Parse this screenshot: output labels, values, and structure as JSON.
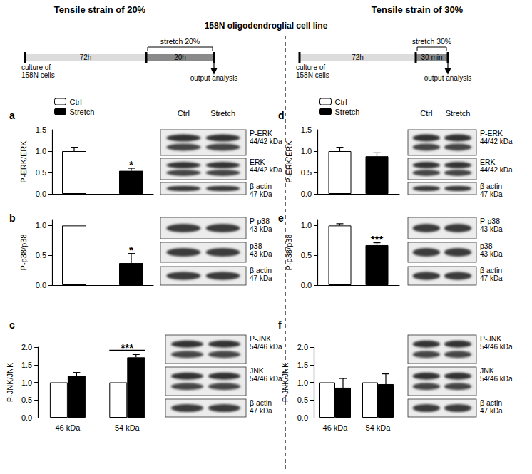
{
  "headers": {
    "left": "Tensile strain of 20%",
    "right": "Tensile strain of 30%",
    "center": "158N oligodendroglial cell line"
  },
  "timelines": [
    {
      "culture": [
        "culture of",
        "158N cells"
      ],
      "culture_time": "72h",
      "stretch": "stretch 20%",
      "stretch_time": "20h",
      "output": "output analysis"
    },
    {
      "culture": [
        "culture of",
        "158N cells"
      ],
      "culture_time": "72h",
      "stretch": "stretch 30%",
      "stretch_time": "30 min",
      "output": "output analysis"
    }
  ],
  "chart_data": [
    {
      "panel": "a",
      "type": "bar",
      "y_label": "P-ERK/ERK",
      "categories": [
        null
      ],
      "series": [
        {
          "name": "Ctrl",
          "color": "#ffffff",
          "values": [
            1.0
          ],
          "errors": [
            0.09
          ]
        },
        {
          "name": "Stretch",
          "color": "#000000",
          "values": [
            0.54
          ],
          "errors": [
            0.06
          ],
          "significance": [
            "*"
          ]
        }
      ],
      "ylim": [
        0,
        1.5
      ],
      "yticks": [
        {
          "value": 0,
          "label": "0.0"
        },
        {
          "value": 0.5,
          "label": "0.5"
        },
        {
          "value": 1,
          "label": "1.0"
        },
        {
          "value": 1.5,
          "label": "1.5"
        }
      ],
      "grid": false,
      "legend": "top left"
    },
    {
      "panel": "b",
      "type": "bar",
      "y_label": "P-p38/p38",
      "categories": [
        null
      ],
      "series": [
        {
          "name": "Ctrl",
          "color": "#ffffff",
          "values": [
            1.0
          ]
        },
        {
          "name": "Stretch",
          "color": "#000000",
          "values": [
            0.37
          ],
          "errors": [
            0.16
          ],
          "significance": [
            "*"
          ]
        }
      ],
      "ylim": [
        0,
        1.1
      ],
      "yticks": [
        {
          "value": 0,
          "label": "0.0"
        },
        {
          "value": 0.5,
          "label": "0.5"
        },
        {
          "value": 1,
          "label": "1.0"
        }
      ],
      "grid": false
    },
    {
      "panel": "c",
      "type": "bar",
      "y_label": "P-JNK/JNK",
      "categories": [
        "46 kDa",
        "54 kDa"
      ],
      "series": [
        {
          "name": "Ctrl",
          "color": "#ffffff",
          "values": [
            1.0,
            1.0
          ]
        },
        {
          "name": "Stretch",
          "color": "#000000",
          "values": [
            1.18,
            1.71
          ],
          "errors": [
            0.1,
            0.08
          ],
          "significance": [
            null,
            "***"
          ]
        }
      ],
      "ylim": [
        0,
        2
      ],
      "yticks": [
        {
          "value": 0,
          "label": "0.0"
        },
        {
          "value": 0.5,
          "label": "0.5"
        },
        {
          "value": 1,
          "label": "1.0"
        },
        {
          "value": 1.5,
          "label": "1.5"
        },
        {
          "value": 2,
          "label": "2.0"
        }
      ],
      "grid": false
    },
    {
      "panel": "d",
      "type": "bar",
      "y_label": "P-ERK/ERK",
      "categories": [
        null
      ],
      "series": [
        {
          "name": "Ctrl",
          "color": "#ffffff",
          "values": [
            1.0
          ],
          "errors": [
            0.09
          ]
        },
        {
          "name": "Stretch",
          "color": "#000000",
          "values": [
            0.88
          ],
          "errors": [
            0.08
          ]
        }
      ],
      "ylim": [
        0,
        1.5
      ],
      "yticks": [
        {
          "value": 0,
          "label": "0.0"
        },
        {
          "value": 0.5,
          "label": "0.5"
        },
        {
          "value": 1,
          "label": "1.0"
        },
        {
          "value": 1.5,
          "label": "1.5"
        }
      ],
      "grid": false,
      "legend": "top left"
    },
    {
      "panel": "e",
      "type": "bar",
      "y_label": "P-p38/p38",
      "categories": [
        null
      ],
      "series": [
        {
          "name": "Ctrl",
          "color": "#ffffff",
          "values": [
            1.0
          ],
          "errors": [
            0.03
          ]
        },
        {
          "name": "Stretch",
          "color": "#000000",
          "values": [
            0.67
          ],
          "errors": [
            0.04
          ],
          "significance": [
            "***"
          ]
        }
      ],
      "ylim": [
        0,
        1.1
      ],
      "yticks": [
        {
          "value": 0,
          "label": "0.0"
        },
        {
          "value": 0.5,
          "label": "0.5"
        },
        {
          "value": 1,
          "label": "1.0"
        }
      ],
      "grid": false
    },
    {
      "panel": "f",
      "type": "bar",
      "y_label": "P-JNK/JNK",
      "categories": [
        "46 kDa",
        "54 kDa"
      ],
      "series": [
        {
          "name": "Ctrl",
          "color": "#ffffff",
          "values": [
            1.0,
            1.0
          ]
        },
        {
          "name": "Stretch",
          "color": "#000000",
          "values": [
            0.85,
            0.95
          ],
          "errors": [
            0.26,
            0.29
          ]
        }
      ],
      "ylim": [
        0,
        2
      ],
      "yticks": [
        {
          "value": 0,
          "label": "0.0"
        },
        {
          "value": 0.5,
          "label": "0.5"
        },
        {
          "value": 1,
          "label": "1.0"
        },
        {
          "value": 1.5,
          "label": "1.5"
        },
        {
          "value": 2,
          "label": "2.0"
        }
      ],
      "grid": false
    }
  ],
  "blots": [
    {
      "panel": "a",
      "lane_labels": [
        "Ctrl",
        "Stretch"
      ],
      "rows": [
        {
          "protein": "P-ERK",
          "size": "44/42 kDa"
        },
        {
          "protein": "ERK",
          "size": "44/42 kDa"
        },
        {
          "protein": "β actin",
          "size": "47 kDa"
        }
      ]
    },
    {
      "panel": "b",
      "rows": [
        {
          "protein": "P-p38",
          "size": "43 kDa"
        },
        {
          "protein": "p38",
          "size": "43 kDa"
        },
        {
          "protein": "β actin",
          "size": "47 kDa"
        }
      ]
    },
    {
      "panel": "c",
      "rows": [
        {
          "protein": "P-JNK",
          "size": "54/46 kDa"
        },
        {
          "protein": "JNK",
          "size": "54/46 kDa"
        },
        {
          "protein": "β actin",
          "size": "47 kDa"
        }
      ]
    },
    {
      "panel": "d",
      "lane_labels": [
        "Ctrl",
        "Stretch"
      ],
      "rows": [
        {
          "protein": "P-ERK",
          "size": "44/42 kDa"
        },
        {
          "protein": "ERK",
          "size": "44/42 kDa"
        },
        {
          "protein": "β actin",
          "size": "47 kDa"
        }
      ]
    },
    {
      "panel": "e",
      "rows": [
        {
          "protein": "P-p38",
          "size": "43 kDa"
        },
        {
          "protein": "p38",
          "size": "43 kDa"
        },
        {
          "protein": "β actin",
          "size": "47 kDa"
        }
      ]
    },
    {
      "panel": "f",
      "rows": [
        {
          "protein": "P-JNK",
          "size": "54/46 kDa"
        },
        {
          "protein": "JNK",
          "size": "54/46 kDa"
        },
        {
          "protein": "β actin",
          "size": "47 kDa"
        }
      ]
    }
  ]
}
